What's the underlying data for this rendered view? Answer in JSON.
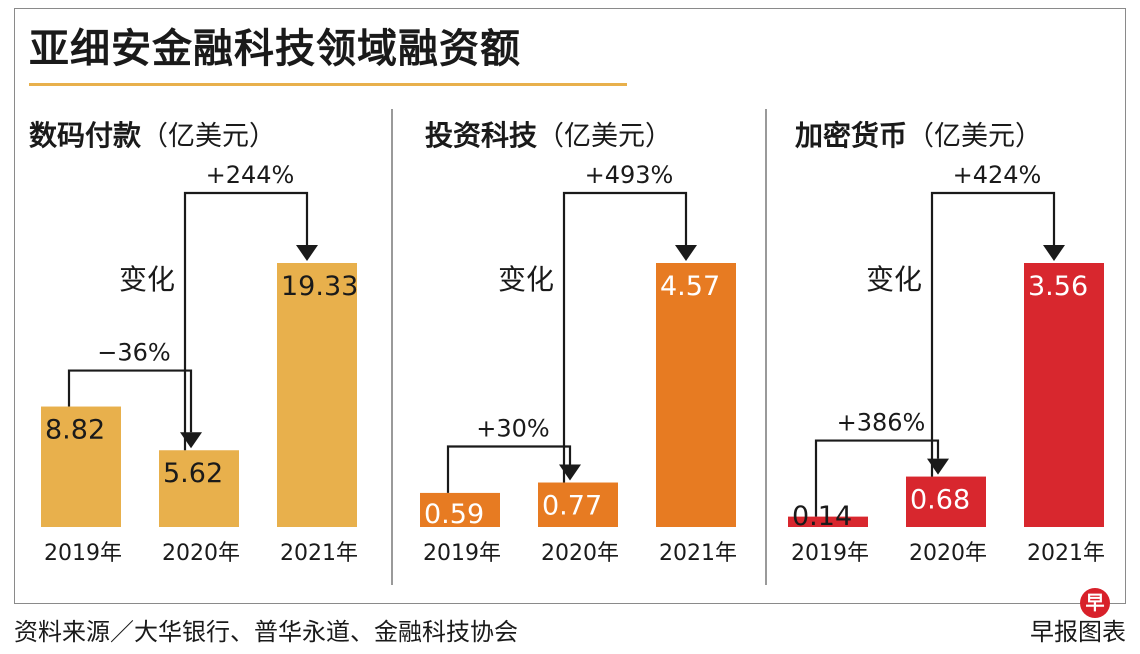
{
  "title": "亚细安金融科技领域融资额",
  "colors": {
    "accent": "#e8b04c",
    "panel_1": "#e8b04c",
    "panel_2": "#e77b22",
    "panel_3": "#d8272e"
  },
  "footer": {
    "source": "资料来源／大华银行、普华永道、金融科技协会",
    "credit": "早报图表",
    "logo_text": "早"
  },
  "chart_data": [
    {
      "type": "bar",
      "title": "数码付款",
      "unit": "（亿美元）",
      "categories": [
        "2019年",
        "2020年",
        "2021年"
      ],
      "values": [
        8.82,
        5.62,
        19.33
      ],
      "data_labels": [
        "8.82",
        "5.62",
        "19.33"
      ],
      "ylim": [
        0,
        19.33
      ],
      "change_label": "变化",
      "changes": [
        {
          "from": "2019年",
          "to": "2020年",
          "label": "−36%"
        },
        {
          "from": "2020年",
          "to": "2021年",
          "label": "+244%"
        }
      ]
    },
    {
      "type": "bar",
      "title": "投资科技",
      "unit": "（亿美元）",
      "categories": [
        "2019年",
        "2020年",
        "2021年"
      ],
      "values": [
        0.59,
        0.77,
        4.57
      ],
      "data_labels": [
        "0.59",
        "0.77",
        "4.57"
      ],
      "ylim": [
        0,
        4.57
      ],
      "change_label": "变化",
      "changes": [
        {
          "from": "2019年",
          "to": "2020年",
          "label": "+30%"
        },
        {
          "from": "2020年",
          "to": "2021年",
          "label": "+493%"
        }
      ]
    },
    {
      "type": "bar",
      "title": "加密货币",
      "unit": "（亿美元）",
      "categories": [
        "2019年",
        "2020年",
        "2021年"
      ],
      "values": [
        0.14,
        0.68,
        3.56
      ],
      "data_labels": [
        "0.14",
        "0.68",
        "3.56"
      ],
      "ylim": [
        0,
        3.56
      ],
      "change_label": "变化",
      "changes": [
        {
          "from": "2019年",
          "to": "2020年",
          "label": "+386%"
        },
        {
          "from": "2020年",
          "to": "2021年",
          "label": "+424%"
        }
      ]
    }
  ]
}
